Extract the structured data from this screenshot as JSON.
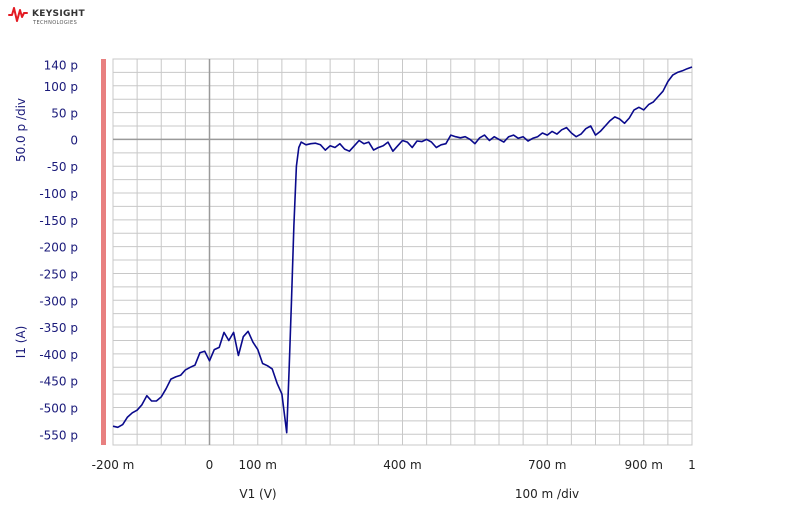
{
  "brand": {
    "name": "KEYSIGHT",
    "tagline": "TECHNOLOGIES",
    "icon": "keysight-waveform-icon"
  },
  "chart_data": {
    "type": "line",
    "title": "",
    "xlabel": "V1 (V)",
    "ylabel": "I1 (A)",
    "x_scale_label": "100 m /div",
    "y_scale_label": "50.0 p /div",
    "xlim": [
      -0.2,
      1.0
    ],
    "ylim": [
      -570,
      150
    ],
    "y_unit_note": "pA",
    "grid": true,
    "colors": {
      "trace": "#0a0a8c",
      "grid": "#c8c8c8",
      "axis_text": "#1a1a7a",
      "marker": "#e88080"
    },
    "x_ticks": [
      {
        "value": -0.2,
        "label": "-200 m"
      },
      {
        "value": 0.0,
        "label": "0"
      },
      {
        "value": 0.1,
        "label": "100 m"
      },
      {
        "value": 0.4,
        "label": "400 m"
      },
      {
        "value": 0.7,
        "label": "700 m"
      },
      {
        "value": 0.9,
        "label": "900 m"
      },
      {
        "value": 1.0,
        "label": "1"
      }
    ],
    "y_ticks": [
      {
        "value": 140,
        "label": "140 p"
      },
      {
        "value": 100,
        "label": "100 p"
      },
      {
        "value": 50,
        "label": "50 p"
      },
      {
        "value": 0,
        "label": "0"
      },
      {
        "value": -50,
        "label": "-50 p"
      },
      {
        "value": -100,
        "label": "-100 p"
      },
      {
        "value": -150,
        "label": "-150 p"
      },
      {
        "value": -200,
        "label": "-200 p"
      },
      {
        "value": -250,
        "label": "-250 p"
      },
      {
        "value": -300,
        "label": "-300 p"
      },
      {
        "value": -350,
        "label": "-350 p"
      },
      {
        "value": -400,
        "label": "-400 p"
      },
      {
        "value": -450,
        "label": "-450 p"
      },
      {
        "value": -500,
        "label": "-500 p"
      },
      {
        "value": -550,
        "label": "-550 p"
      }
    ],
    "series": [
      {
        "points": [
          [
            -0.2,
            -535
          ],
          [
            -0.19,
            -537
          ],
          [
            -0.18,
            -532
          ],
          [
            -0.17,
            -518
          ],
          [
            -0.16,
            -510
          ],
          [
            -0.15,
            -505
          ],
          [
            -0.14,
            -495
          ],
          [
            -0.13,
            -478
          ],
          [
            -0.12,
            -488
          ],
          [
            -0.11,
            -488
          ],
          [
            -0.1,
            -480
          ],
          [
            -0.09,
            -465
          ],
          [
            -0.08,
            -447
          ],
          [
            -0.07,
            -443
          ],
          [
            -0.06,
            -440
          ],
          [
            -0.05,
            -430
          ],
          [
            -0.04,
            -425
          ],
          [
            -0.03,
            -421
          ],
          [
            -0.02,
            -398
          ],
          [
            -0.01,
            -395
          ],
          [
            0.0,
            -413
          ],
          [
            0.01,
            -392
          ],
          [
            0.02,
            -388
          ],
          [
            0.03,
            -360
          ],
          [
            0.04,
            -375
          ],
          [
            0.05,
            -360
          ],
          [
            0.06,
            -403
          ],
          [
            0.07,
            -368
          ],
          [
            0.08,
            -358
          ],
          [
            0.09,
            -378
          ],
          [
            0.1,
            -392
          ],
          [
            0.11,
            -418
          ],
          [
            0.12,
            -422
          ],
          [
            0.13,
            -428
          ],
          [
            0.14,
            -455
          ],
          [
            0.15,
            -475
          ],
          [
            0.16,
            -547
          ],
          [
            0.165,
            -430
          ],
          [
            0.17,
            -300
          ],
          [
            0.175,
            -160
          ],
          [
            0.18,
            -50
          ],
          [
            0.185,
            -15
          ],
          [
            0.19,
            -5
          ],
          [
            0.2,
            -10
          ],
          [
            0.21,
            -8
          ],
          [
            0.22,
            -7
          ],
          [
            0.23,
            -10
          ],
          [
            0.24,
            -20
          ],
          [
            0.25,
            -12
          ],
          [
            0.26,
            -15
          ],
          [
            0.27,
            -8
          ],
          [
            0.28,
            -18
          ],
          [
            0.29,
            -22
          ],
          [
            0.3,
            -12
          ],
          [
            0.31,
            -2
          ],
          [
            0.32,
            -8
          ],
          [
            0.33,
            -5
          ],
          [
            0.34,
            -20
          ],
          [
            0.35,
            -15
          ],
          [
            0.36,
            -12
          ],
          [
            0.37,
            -5
          ],
          [
            0.38,
            -22
          ],
          [
            0.39,
            -12
          ],
          [
            0.4,
            -2
          ],
          [
            0.41,
            -5
          ],
          [
            0.42,
            -15
          ],
          [
            0.43,
            -3
          ],
          [
            0.44,
            -4
          ],
          [
            0.45,
            0
          ],
          [
            0.46,
            -5
          ],
          [
            0.47,
            -15
          ],
          [
            0.48,
            -10
          ],
          [
            0.49,
            -8
          ],
          [
            0.5,
            8
          ],
          [
            0.51,
            5
          ],
          [
            0.52,
            3
          ],
          [
            0.53,
            5
          ],
          [
            0.54,
            0
          ],
          [
            0.55,
            -8
          ],
          [
            0.56,
            3
          ],
          [
            0.57,
            8
          ],
          [
            0.58,
            -2
          ],
          [
            0.59,
            5
          ],
          [
            0.6,
            0
          ],
          [
            0.61,
            -5
          ],
          [
            0.62,
            5
          ],
          [
            0.63,
            8
          ],
          [
            0.64,
            2
          ],
          [
            0.65,
            5
          ],
          [
            0.66,
            -3
          ],
          [
            0.67,
            2
          ],
          [
            0.68,
            5
          ],
          [
            0.69,
            12
          ],
          [
            0.7,
            8
          ],
          [
            0.71,
            15
          ],
          [
            0.72,
            10
          ],
          [
            0.73,
            18
          ],
          [
            0.74,
            22
          ],
          [
            0.75,
            12
          ],
          [
            0.76,
            5
          ],
          [
            0.77,
            10
          ],
          [
            0.78,
            20
          ],
          [
            0.79,
            25
          ],
          [
            0.8,
            8
          ],
          [
            0.81,
            15
          ],
          [
            0.82,
            25
          ],
          [
            0.83,
            35
          ],
          [
            0.84,
            42
          ],
          [
            0.85,
            38
          ],
          [
            0.86,
            30
          ],
          [
            0.87,
            40
          ],
          [
            0.88,
            55
          ],
          [
            0.89,
            60
          ],
          [
            0.9,
            55
          ],
          [
            0.91,
            65
          ],
          [
            0.92,
            70
          ],
          [
            0.93,
            80
          ],
          [
            0.94,
            90
          ],
          [
            0.95,
            108
          ],
          [
            0.96,
            120
          ],
          [
            0.97,
            125
          ],
          [
            0.98,
            128
          ],
          [
            0.99,
            132
          ],
          [
            1.0,
            135
          ]
        ]
      }
    ]
  }
}
